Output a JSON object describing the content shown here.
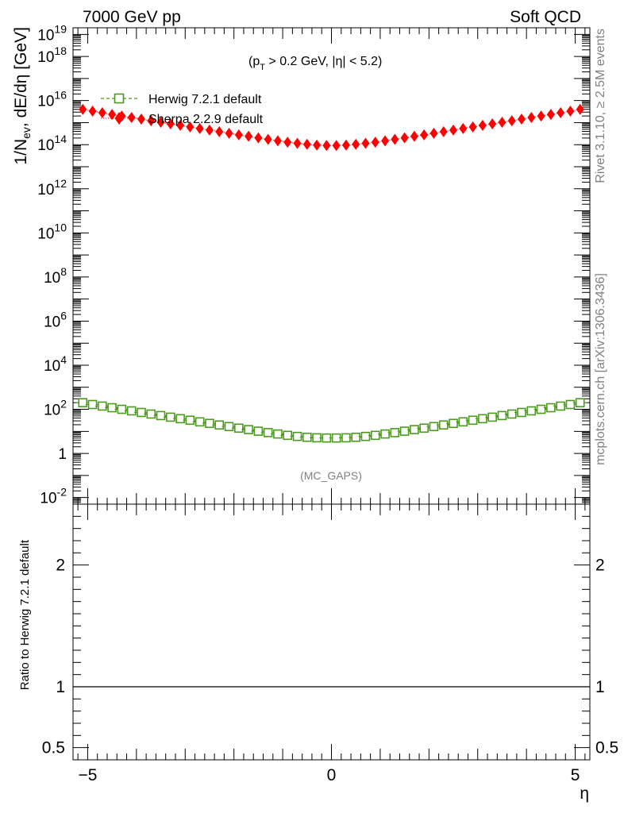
{
  "header": {
    "left": "7000 GeV pp",
    "right": "Soft QCD"
  },
  "side_text": {
    "rivet": "Rivet 3.1.10, ≥ 2.5M events",
    "mcplots": "mcplots.cern.ch [arXiv:1306.3436]"
  },
  "main_panel": {
    "cut_label": "(p_T > 0.2 GeV, |η| < 5.2)",
    "watermark": "(MC_GAPS)",
    "ylabel": "1/N_ev, dE/dη [GeV]",
    "ytick_exponents": [
      -2,
      0,
      2,
      4,
      6,
      8,
      10,
      12,
      14,
      16,
      18,
      19
    ],
    "ytick_labels": [
      "10^-2",
      "1",
      "10^2",
      "10^4",
      "10^6",
      "10^8",
      "10^10",
      "10^12",
      "10^14",
      "10^16",
      "10^18",
      "10^19"
    ]
  },
  "ratio_panel": {
    "ylabel": "Ratio to Herwig 7.2.1 default",
    "yticks": [
      0.5,
      1,
      2
    ],
    "ytick_labels": [
      "0.5",
      "1",
      "2"
    ]
  },
  "x_axis": {
    "label": "η",
    "ticks": [
      -5,
      0,
      5
    ],
    "tick_labels": [
      "−5",
      "0",
      "5"
    ]
  },
  "chart_data": {
    "type": "scatter",
    "title": "",
    "xlabel": "η",
    "ylabel": "1/N_ev, dE/dη [GeV]",
    "ylog": true,
    "xlim": [
      -5.3,
      5.3
    ],
    "ylim": [
      0.005,
      20000000000000000000
    ],
    "legend_position": "top-left",
    "x": [
      -5.1,
      -4.9,
      -4.7,
      -4.5,
      -4.3,
      -4.1,
      -3.9,
      -3.7,
      -3.5,
      -3.3,
      -3.1,
      -2.9,
      -2.7,
      -2.5,
      -2.3,
      -2.1,
      -1.9,
      -1.7,
      -1.5,
      -1.3,
      -1.1,
      -0.9,
      -0.7,
      -0.5,
      -0.3,
      -0.1,
      0.1,
      0.3,
      0.5,
      0.7,
      0.9,
      1.1,
      1.3,
      1.5,
      1.7,
      1.9,
      2.1,
      2.3,
      2.5,
      2.7,
      2.9,
      3.1,
      3.3,
      3.5,
      3.7,
      3.9,
      4.1,
      4.3,
      4.5,
      4.7,
      4.9,
      5.1
    ],
    "series": [
      {
        "name": "Herwig 7.2.1 default",
        "marker": "open-square",
        "color": "#4a9a1e",
        "values": [
          200,
          165,
          140,
          118,
          100,
          85,
          72,
          61,
          52,
          44,
          37.5,
          32,
          27,
          23,
          19.5,
          16.5,
          14,
          12,
          10.2,
          8.8,
          7.6,
          6.6,
          5.9,
          5.4,
          5.1,
          5.0,
          5.0,
          5.1,
          5.4,
          5.9,
          6.6,
          7.6,
          8.8,
          10.2,
          12,
          14,
          16.5,
          19.5,
          23,
          27,
          32,
          37.5,
          44,
          52,
          61,
          72,
          85,
          100,
          118,
          140,
          165,
          200
        ]
      },
      {
        "name": "Sherpa 2.2.9 default",
        "marker": "filled-diamond",
        "color": "#ff0000",
        "values": [
          4000000000000000.0,
          3300000000000000.0,
          2800000000000000.0,
          2350000000000000.0,
          2000000000000000.0,
          1700000000000000.0,
          1450000000000000.0,
          1220000000000000.0,
          1040000000000000.0,
          880000000000000.0,
          750000000000000.0,
          640000000000000.0,
          540000000000000.0,
          460000000000000.0,
          390000000000000.0,
          330000000000000.0,
          280000000000000.0,
          240000000000000.0,
          205000000000000.0,
          175000000000000.0,
          150000000000000.0,
          130000000000000.0,
          115000000000000.0,
          104000000000000.0,
          96000000000000.0,
          92000000000000.0,
          92000000000000.0,
          96000000000000.0,
          104000000000000.0,
          115000000000000.0,
          130000000000000.0,
          150000000000000.0,
          175000000000000.0,
          205000000000000.0,
          240000000000000.0,
          280000000000000.0,
          330000000000000.0,
          390000000000000.0,
          460000000000000.0,
          540000000000000.0,
          640000000000000.0,
          750000000000000.0,
          880000000000000.0,
          1040000000000000.0,
          1220000000000000.0,
          1450000000000000.0,
          1700000000000000.0,
          2000000000000000.0,
          2350000000000000.0,
          2800000000000000.0,
          3300000000000000.0,
          4000000000000000.0
        ]
      }
    ],
    "ratio": {
      "ylabel": "Ratio to Herwig 7.2.1 default",
      "ylim": [
        0.4,
        2.5
      ],
      "reference_line": 1,
      "series": []
    }
  }
}
